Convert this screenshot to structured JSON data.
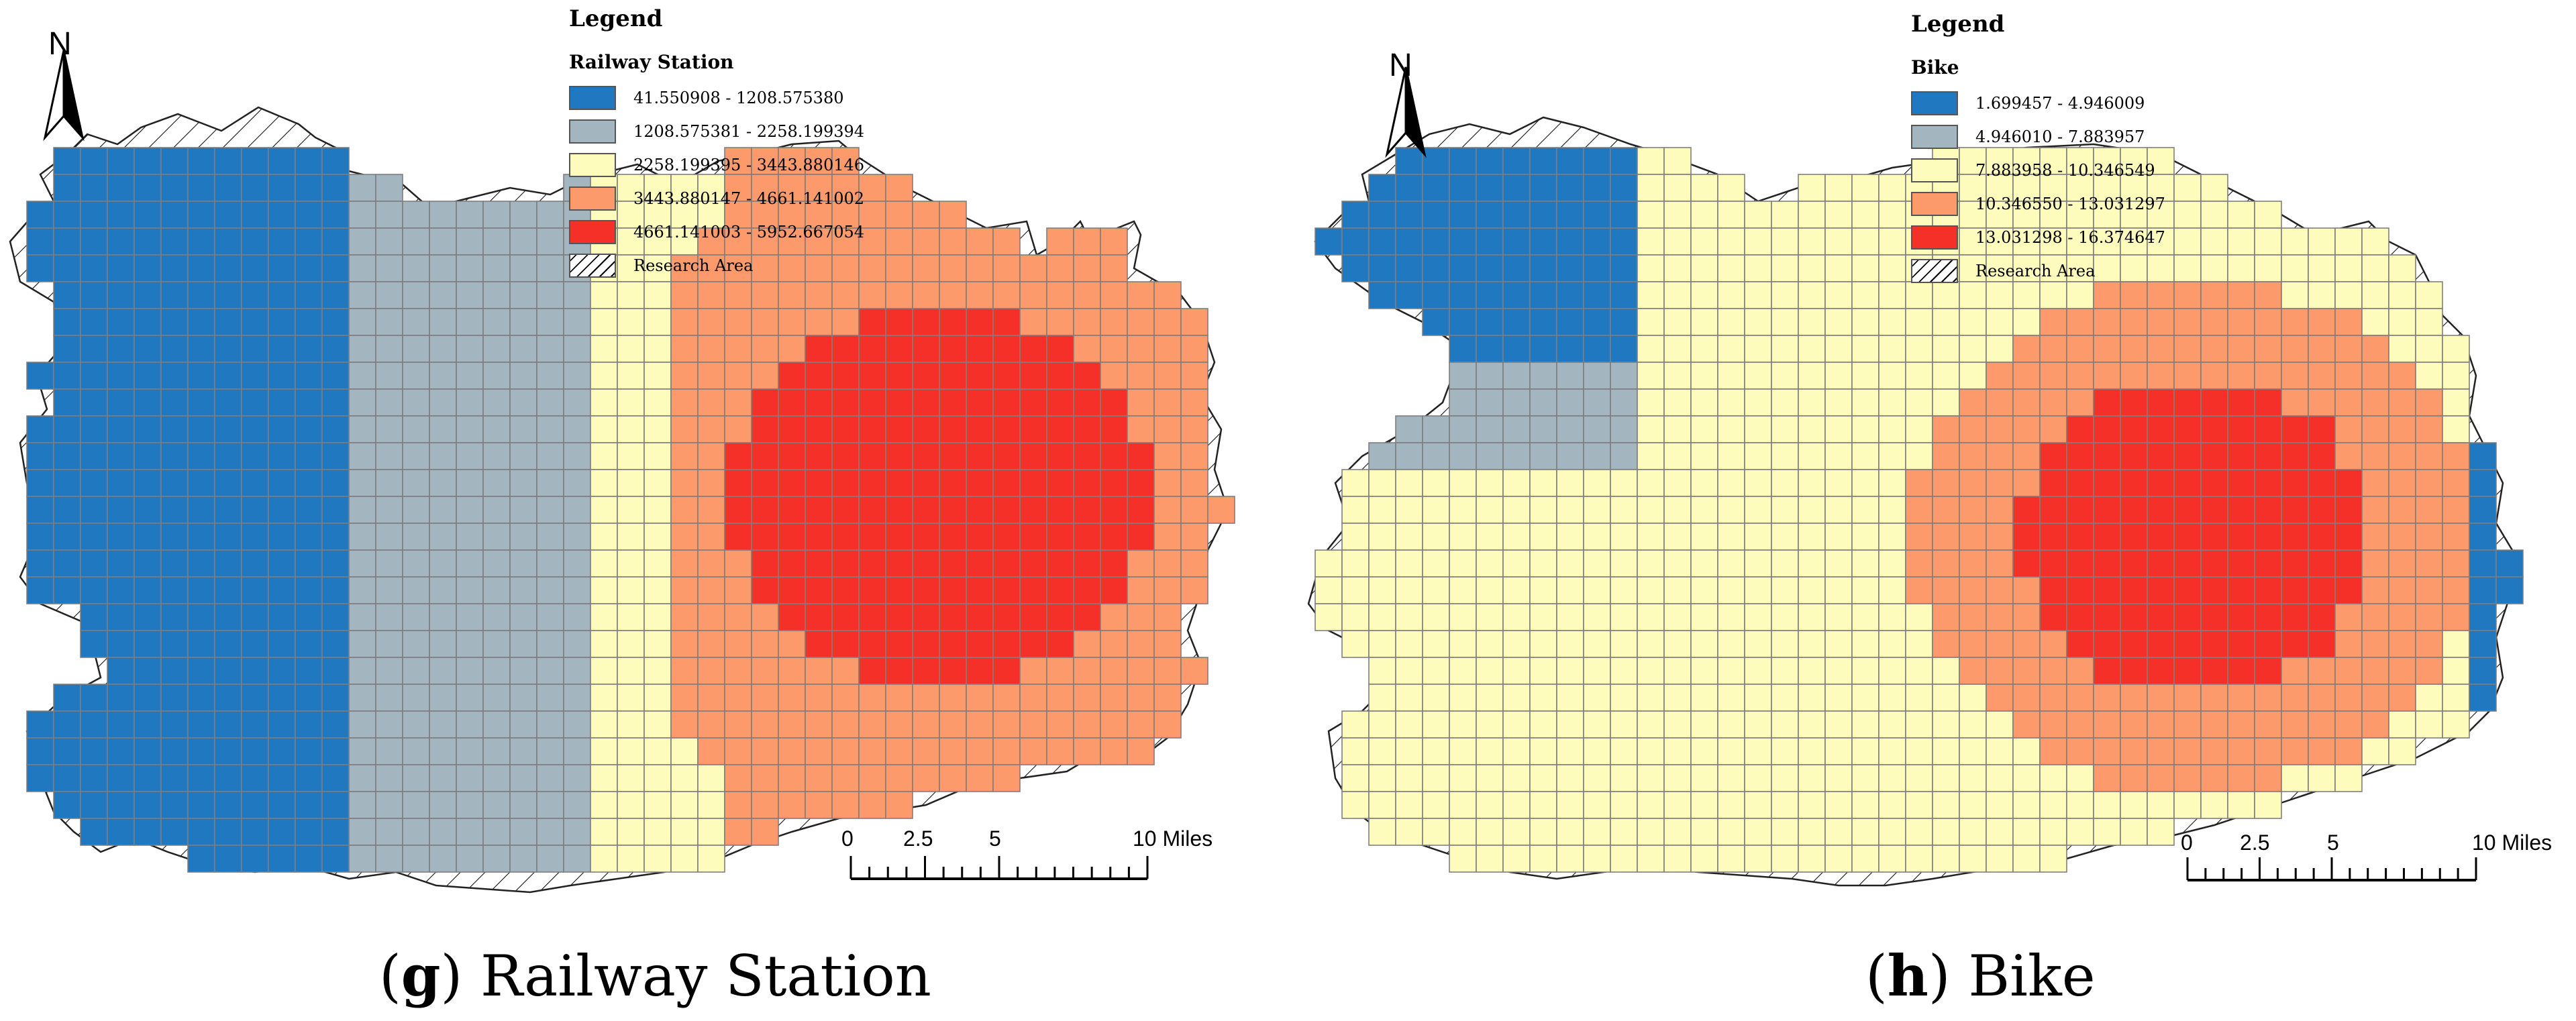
{
  "colors": {
    "class1": "#1f78c0",
    "class2": "#a3b5bf",
    "class3": "#fefcbc",
    "class4": "#fc9a6c",
    "class5": "#f53028",
    "cell_border": "#7e7e7e",
    "outline": "#222222"
  },
  "panels": [
    {
      "id": "g",
      "caption_letter": "g",
      "caption_text": "Railway Station",
      "north_label": "N",
      "north_icon": "north-arrow-icon",
      "legend": {
        "title": "Legend",
        "layer": "Railway Station",
        "classes": [
          {
            "label": "41.550908 - 1208.575380",
            "color": "#1f78c0"
          },
          {
            "label": "1208.575381 - 2258.199394",
            "color": "#a3b5bf"
          },
          {
            "label": "2258.199395 - 3443.880146",
            "color": "#fefcbc"
          },
          {
            "label": "3443.880147 - 4661.141002",
            "color": "#fc9a6c"
          },
          {
            "label": "4661.141003 - 5952.667054",
            "color": "#f53028"
          }
        ],
        "area_label": "Research Area"
      },
      "scale": {
        "ticks": [
          "0",
          "2.5",
          "5",
          "10 Miles"
        ],
        "values": [
          0,
          2.5,
          5,
          10
        ]
      }
    },
    {
      "id": "h",
      "caption_letter": "h",
      "caption_text": "Bike",
      "north_label": "N",
      "north_icon": "north-arrow-icon",
      "legend": {
        "title": "Legend",
        "layer": "Bike",
        "classes": [
          {
            "label": "1.699457 - 4.946009",
            "color": "#1f78c0"
          },
          {
            "label": "4.946010 - 7.883957",
            "color": "#a3b5bf"
          },
          {
            "label": "7.883958 - 10.346549",
            "color": "#fefcbc"
          },
          {
            "label": "10.346550 - 13.031297",
            "color": "#fc9a6c"
          },
          {
            "label": "13.031298 - 16.374647",
            "color": "#f53028"
          }
        ],
        "area_label": "Research Area"
      },
      "scale": {
        "ticks": [
          "0",
          "2.5",
          "5",
          "10 Miles"
        ],
        "values": [
          0,
          2.5,
          5,
          10
        ]
      }
    }
  ]
}
